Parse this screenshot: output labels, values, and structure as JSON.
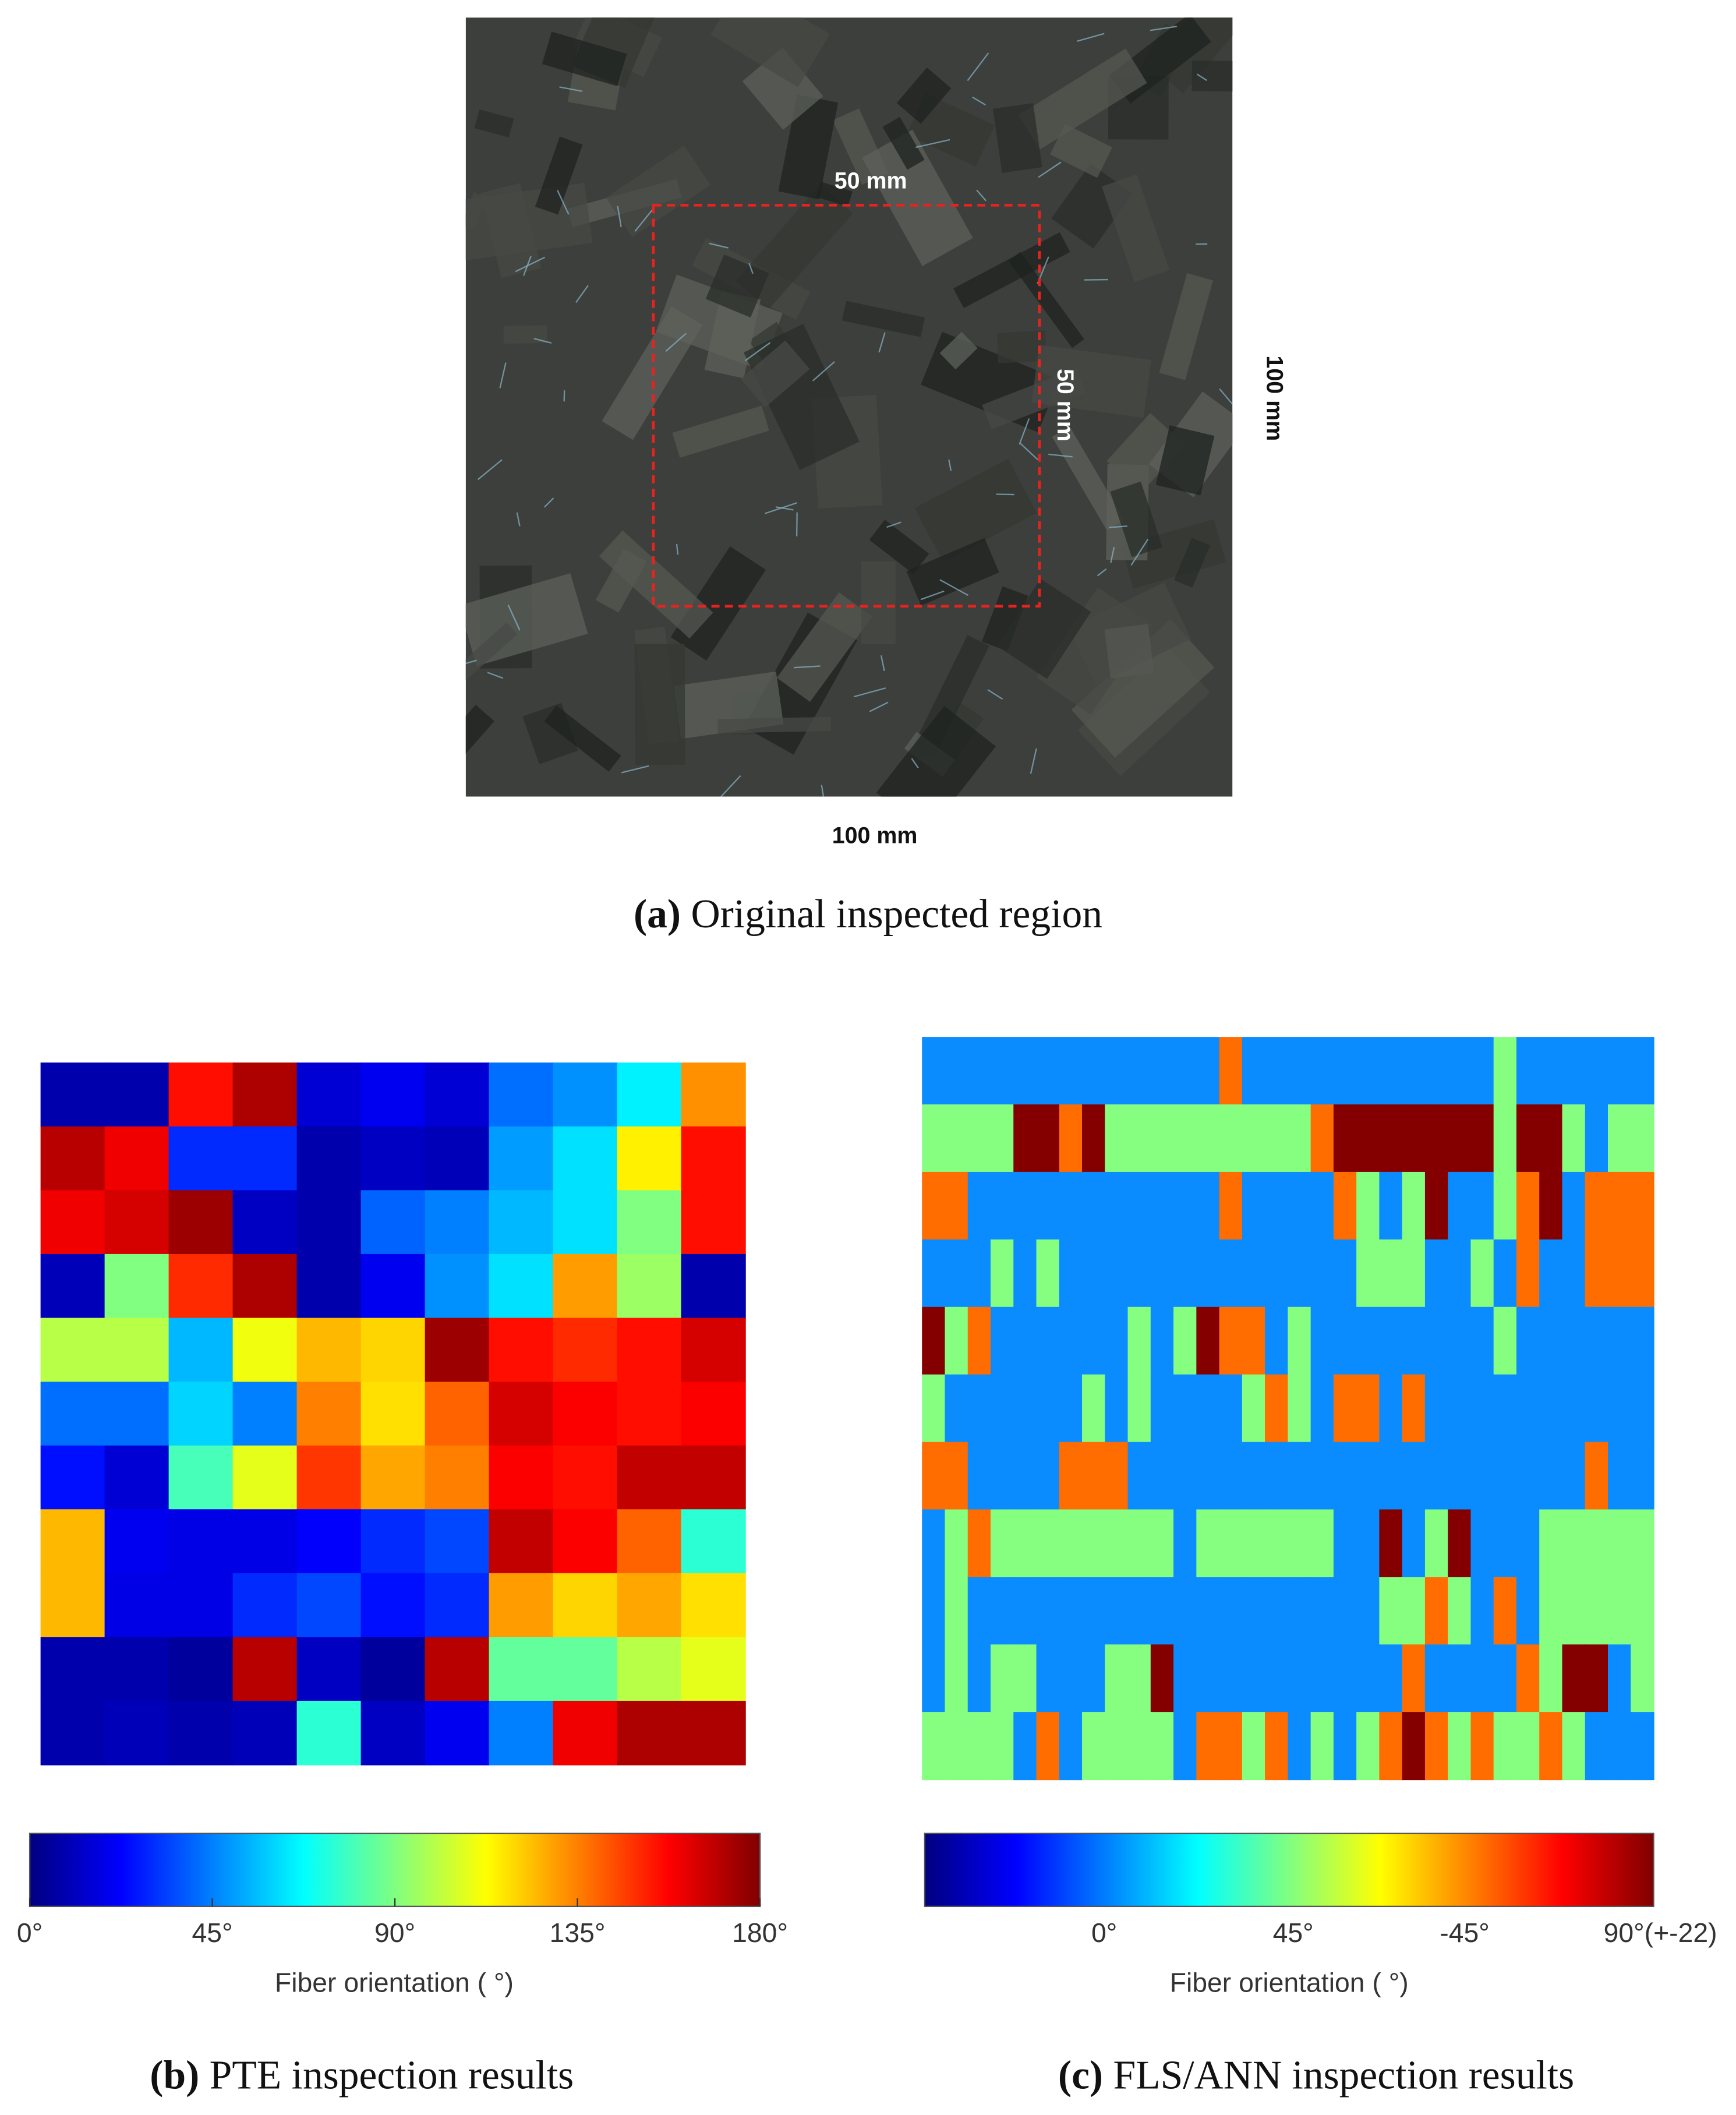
{
  "panel_a": {
    "caption_label": "(a)",
    "caption": "Original inspected region",
    "inner_width_label": "50 mm",
    "inner_height_label": "50 mm",
    "outer_height_label": "100 mm",
    "outer_width_label": "100 mm"
  },
  "panel_b": {
    "caption_label": "(b)",
    "caption": "PTE inspection results",
    "colorbar_title": "Fiber orientation ( °)",
    "clim": [
      0,
      180
    ],
    "colorbar_ticks": [
      {
        "value": 0,
        "label": "0°"
      },
      {
        "value": 45,
        "label": "45°"
      },
      {
        "value": 90,
        "label": "90°"
      },
      {
        "value": 135,
        "label": "135°"
      },
      {
        "value": 180,
        "label": "180°"
      }
    ],
    "values": [
      [
        8,
        8,
        155,
        172,
        15,
        20,
        15,
        42,
        48,
        65,
        132
      ],
      [
        170,
        160,
        30,
        30,
        8,
        12,
        10,
        50,
        62,
        115,
        155
      ],
      [
        160,
        165,
        175,
        12,
        8,
        40,
        45,
        55,
        62,
        90,
        155
      ],
      [
        10,
        90,
        150,
        172,
        8,
        20,
        48,
        62,
        130,
        95,
        8
      ],
      [
        100,
        100,
        55,
        110,
        125,
        120,
        175,
        155,
        150,
        155,
        165
      ],
      [
        42,
        42,
        60,
        45,
        135,
        118,
        140,
        165,
        158,
        155,
        158
      ],
      [
        25,
        15,
        80,
        108,
        148,
        128,
        135,
        158,
        155,
        168,
        168
      ],
      [
        125,
        20,
        18,
        18,
        22,
        30,
        35,
        168,
        158,
        140,
        75
      ],
      [
        125,
        18,
        18,
        30,
        35,
        25,
        30,
        130,
        120,
        128,
        118
      ],
      [
        8,
        8,
        5,
        170,
        12,
        5,
        170,
        85,
        85,
        100,
        108
      ],
      [
        8,
        10,
        8,
        10,
        75,
        12,
        20,
        45,
        160,
        172,
        172
      ]
    ]
  },
  "panel_c": {
    "caption_label": "(c)",
    "caption": "FLS/ANN inspection results",
    "colorbar_title": "Fiber orientation ( °)",
    "colorbar_ticks": [
      "0°",
      "45°",
      "-45°",
      "90°(+-22)"
    ],
    "colors": {
      "0": "#0a8cff",
      "45": "#86ff80",
      "-45": "#ff6c00",
      "90": "#840000"
    },
    "values": [
      [
        0,
        0,
        0,
        0,
        0,
        0,
        0,
        0,
        0,
        0,
        0,
        0,
        0,
        -45,
        0,
        0,
        0,
        0,
        0,
        0,
        0,
        0,
        0,
        0,
        0,
        45,
        0,
        0,
        0,
        0,
        0,
        0
      ],
      [
        45,
        45,
        45,
        45,
        90,
        90,
        -45,
        90,
        45,
        45,
        45,
        45,
        45,
        45,
        45,
        45,
        45,
        -45,
        90,
        90,
        90,
        90,
        90,
        90,
        90,
        45,
        90,
        90,
        45,
        0,
        45,
        45
      ],
      [
        -45,
        -45,
        0,
        0,
        0,
        0,
        0,
        0,
        0,
        0,
        0,
        0,
        0,
        -45,
        0,
        0,
        0,
        0,
        -45,
        45,
        0,
        45,
        90,
        0,
        0,
        45,
        -45,
        90,
        0,
        -45,
        -45,
        -45
      ],
      [
        0,
        0,
        0,
        45,
        0,
        45,
        0,
        0,
        0,
        0,
        0,
        0,
        0,
        0,
        0,
        0,
        0,
        0,
        0,
        45,
        45,
        45,
        0,
        0,
        45,
        0,
        -45,
        0,
        0,
        -45,
        -45,
        -45
      ],
      [
        90,
        45,
        -45,
        0,
        0,
        0,
        0,
        0,
        0,
        45,
        0,
        45,
        90,
        -45,
        -45,
        0,
        45,
        0,
        0,
        0,
        0,
        0,
        0,
        0,
        0,
        45,
        0,
        0,
        0,
        0,
        0,
        0
      ],
      [
        45,
        0,
        0,
        0,
        0,
        0,
        0,
        45,
        0,
        45,
        0,
        0,
        0,
        0,
        45,
        -45,
        45,
        0,
        -45,
        -45,
        0,
        -45,
        0,
        0,
        0,
        0,
        0,
        0,
        0,
        0,
        0,
        0
      ],
      [
        -45,
        -45,
        0,
        0,
        0,
        0,
        -45,
        -45,
        -45,
        0,
        0,
        0,
        0,
        0,
        0,
        0,
        0,
        0,
        0,
        0,
        0,
        0,
        0,
        0,
        0,
        0,
        0,
        0,
        0,
        -45,
        0,
        0
      ],
      [
        0,
        45,
        -45,
        45,
        45,
        45,
        45,
        45,
        45,
        45,
        45,
        0,
        45,
        45,
        45,
        45,
        45,
        45,
        0,
        0,
        90,
        0,
        45,
        90,
        0,
        0,
        0,
        45,
        45,
        45,
        45,
        45
      ],
      [
        0,
        45,
        0,
        0,
        0,
        0,
        0,
        0,
        0,
        0,
        0,
        0,
        0,
        0,
        0,
        0,
        0,
        0,
        0,
        0,
        45,
        45,
        -45,
        45,
        0,
        -45,
        0,
        45,
        45,
        45,
        45,
        45
      ],
      [
        0,
        45,
        0,
        45,
        45,
        0,
        0,
        0,
        45,
        45,
        90,
        0,
        0,
        0,
        0,
        0,
        0,
        0,
        0,
        0,
        0,
        -45,
        0,
        0,
        0,
        0,
        -45,
        45,
        90,
        90,
        0,
        45
      ],
      [
        45,
        45,
        45,
        45,
        0,
        -45,
        0,
        45,
        45,
        45,
        45,
        0,
        -45,
        -45,
        45,
        -45,
        0,
        45,
        0,
        45,
        -45,
        90,
        -45,
        45,
        -45,
        45,
        45,
        -45,
        45,
        0,
        0,
        0
      ]
    ]
  }
}
